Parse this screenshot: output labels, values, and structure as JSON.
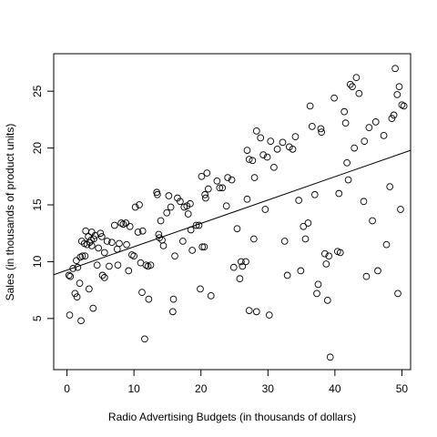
{
  "chart_data": {
    "type": "scatter",
    "title": "",
    "xlabel": "Radio Advertising Budgets (in thousands of dollars)",
    "ylabel": "Sales (in thousands of product units)",
    "xlim": [
      -1.98,
      51.3
    ],
    "ylim": [
      0.5,
      28.3
    ],
    "x_ticks": [
      0,
      10,
      20,
      30,
      40,
      50
    ],
    "y_ticks": [
      5,
      10,
      15,
      20,
      25
    ],
    "grid": false,
    "legend": "none",
    "regression_line": {
      "x0": -1.98,
      "y0": 8.85,
      "x1": 51.3,
      "y1": 19.8
    },
    "points": [
      [
        0.3,
        8.8
      ],
      [
        0.4,
        5.3
      ],
      [
        0.5,
        8.7
      ],
      [
        0.9,
        9.4
      ],
      [
        1.2,
        7.2
      ],
      [
        1.4,
        10.1
      ],
      [
        1.5,
        6.9
      ],
      [
        1.6,
        9.5
      ],
      [
        1.9,
        8.1
      ],
      [
        2.0,
        10.4
      ],
      [
        2.1,
        4.8
      ],
      [
        2.2,
        11.8
      ],
      [
        2.3,
        10.5
      ],
      [
        2.6,
        11.6
      ],
      [
        2.7,
        10.5
      ],
      [
        2.8,
        12.7
      ],
      [
        3.0,
        11.5
      ],
      [
        3.2,
        12.2
      ],
      [
        3.3,
        7.6
      ],
      [
        3.4,
        11.7
      ],
      [
        3.6,
        11.9
      ],
      [
        3.7,
        12.6
      ],
      [
        3.7,
        11.4
      ],
      [
        3.9,
        5.9
      ],
      [
        4.0,
        12.0
      ],
      [
        4.2,
        12.3
      ],
      [
        4.5,
        9.7
      ],
      [
        4.7,
        11.2
      ],
      [
        5.0,
        12.5
      ],
      [
        5.2,
        12.2
      ],
      [
        5.3,
        8.8
      ],
      [
        5.6,
        10.8
      ],
      [
        5.6,
        8.6
      ],
      [
        6.0,
        11.8
      ],
      [
        6.3,
        9.6
      ],
      [
        6.7,
        11.7
      ],
      [
        7.1,
        13.2
      ],
      [
        7.5,
        11.1
      ],
      [
        7.6,
        9.7
      ],
      [
        7.8,
        11.6
      ],
      [
        8.1,
        13.4
      ],
      [
        8.4,
        13.3
      ],
      [
        8.8,
        13.4
      ],
      [
        8.9,
        11.5
      ],
      [
        9.2,
        9.2
      ],
      [
        9.4,
        13.1
      ],
      [
        9.7,
        10.6
      ],
      [
        10.0,
        10.5
      ],
      [
        10.2,
        14.8
      ],
      [
        10.6,
        12.6
      ],
      [
        10.8,
        15.0
      ],
      [
        11.0,
        9.9
      ],
      [
        11.2,
        7.3
      ],
      [
        11.3,
        12.7
      ],
      [
        11.6,
        3.2
      ],
      [
        11.8,
        9.7
      ],
      [
        12.1,
        9.6
      ],
      [
        12.2,
        6.7
      ],
      [
        12.5,
        9.7
      ],
      [
        13.4,
        16.1
      ],
      [
        13.5,
        15.9
      ],
      [
        13.7,
        12.4
      ],
      [
        13.8,
        12.1
      ],
      [
        14.0,
        13.6
      ],
      [
        14.2,
        11.9
      ],
      [
        14.4,
        11.4
      ],
      [
        14.9,
        14.3
      ],
      [
        15.2,
        15.8
      ],
      [
        15.5,
        14.8
      ],
      [
        15.9,
        6.7
      ],
      [
        15.8,
        5.6
      ],
      [
        16.1,
        10.5
      ],
      [
        16.5,
        15.6
      ],
      [
        16.9,
        15.3
      ],
      [
        17.3,
        11.8
      ],
      [
        17.5,
        14.8
      ],
      [
        17.9,
        14.9
      ],
      [
        18.1,
        14.2
      ],
      [
        18.4,
        15.1
      ],
      [
        18.5,
        12.8
      ],
      [
        18.7,
        11.0
      ],
      [
        19.3,
        13.2
      ],
      [
        19.7,
        13.2
      ],
      [
        19.9,
        7.6
      ],
      [
        20.1,
        17.5
      ],
      [
        20.2,
        11.3
      ],
      [
        20.5,
        11.3
      ],
      [
        20.6,
        15.9
      ],
      [
        20.7,
        15.6
      ],
      [
        20.9,
        17.8
      ],
      [
        21.1,
        16.4
      ],
      [
        21.5,
        7.0
      ],
      [
        22.4,
        17.1
      ],
      [
        22.8,
        16.5
      ],
      [
        23.2,
        16.5
      ],
      [
        23.8,
        14.9
      ],
      [
        24.0,
        17.4
      ],
      [
        24.6,
        17.2
      ],
      [
        24.9,
        9.5
      ],
      [
        25.4,
        12.9
      ],
      [
        25.8,
        8.5
      ],
      [
        26.0,
        10.0
      ],
      [
        26.2,
        9.6
      ],
      [
        26.7,
        10.0
      ],
      [
        26.9,
        15.5
      ],
      [
        26.9,
        19.8
      ],
      [
        27.2,
        19.0
      ],
      [
        27.2,
        5.7
      ],
      [
        27.7,
        18.9
      ],
      [
        27.9,
        12.0
      ],
      [
        28.0,
        17.4
      ],
      [
        28.3,
        21.5
      ],
      [
        28.3,
        5.6
      ],
      [
        28.9,
        20.9
      ],
      [
        29.3,
        19.4
      ],
      [
        29.6,
        14.6
      ],
      [
        29.9,
        19.2
      ],
      [
        30.2,
        5.3
      ],
      [
        30.4,
        20.6
      ],
      [
        30.9,
        18.3
      ],
      [
        31.4,
        19.9
      ],
      [
        32.2,
        20.5
      ],
      [
        32.5,
        11.8
      ],
      [
        32.9,
        8.8
      ],
      [
        33.2,
        20.1
      ],
      [
        33.7,
        19.9
      ],
      [
        34.1,
        21.0
      ],
      [
        34.6,
        15.4
      ],
      [
        34.9,
        9.2
      ],
      [
        35.3,
        13.1
      ],
      [
        35.6,
        12.0
      ],
      [
        36.0,
        13.4
      ],
      [
        36.3,
        23.7
      ],
      [
        36.6,
        21.9
      ],
      [
        37.0,
        15.9
      ],
      [
        37.3,
        7.2
      ],
      [
        37.5,
        8.0
      ],
      [
        37.9,
        21.7
      ],
      [
        38.0,
        21.4
      ],
      [
        38.5,
        10.7
      ],
      [
        38.7,
        9.8
      ],
      [
        38.9,
        6.6
      ],
      [
        39.1,
        10.5
      ],
      [
        39.3,
        1.6
      ],
      [
        39.9,
        24.4
      ],
      [
        40.4,
        10.9
      ],
      [
        40.6,
        16.0
      ],
      [
        40.8,
        10.8
      ],
      [
        41.4,
        23.2
      ],
      [
        41.6,
        22.2
      ],
      [
        41.8,
        18.7
      ],
      [
        42.0,
        17.2
      ],
      [
        42.3,
        25.6
      ],
      [
        42.6,
        25.4
      ],
      [
        42.9,
        20.0
      ],
      [
        43.2,
        26.2
      ],
      [
        43.6,
        24.8
      ],
      [
        44.3,
        15.3
      ],
      [
        44.4,
        20.6
      ],
      [
        44.7,
        8.7
      ],
      [
        45.1,
        21.8
      ],
      [
        45.6,
        13.6
      ],
      [
        46.1,
        22.3
      ],
      [
        46.4,
        9.2
      ],
      [
        47.3,
        21.1
      ],
      [
        47.7,
        11.5
      ],
      [
        48.2,
        16.6
      ],
      [
        48.5,
        22.6
      ],
      [
        48.8,
        22.9
      ],
      [
        49.0,
        27.0
      ],
      [
        49.3,
        24.7
      ],
      [
        49.4,
        7.2
      ],
      [
        49.6,
        25.4
      ],
      [
        49.8,
        14.6
      ],
      [
        50.0,
        23.8
      ],
      [
        50.3,
        23.7
      ]
    ]
  }
}
